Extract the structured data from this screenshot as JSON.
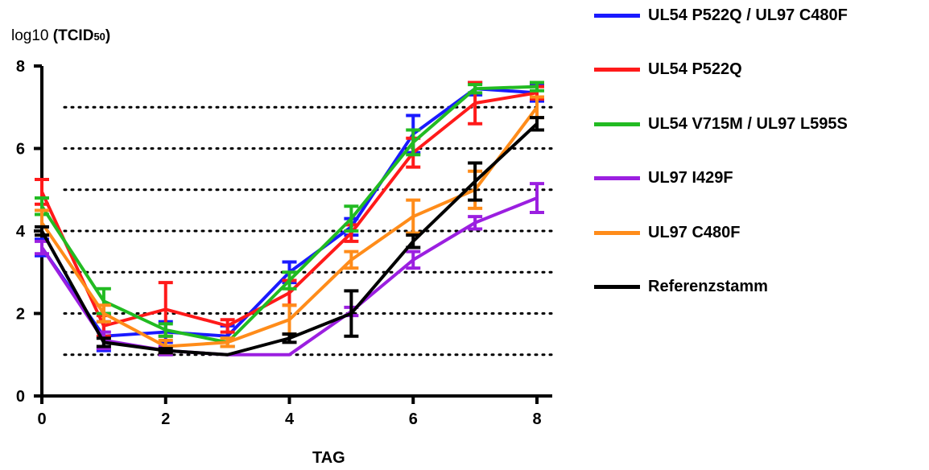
{
  "chart_data": {
    "type": "line",
    "title": "",
    "xlabel": "TAG",
    "ylabel": {
      "prefix": "log10",
      "main": "TCID",
      "sub": "50"
    },
    "xlim": [
      0,
      8
    ],
    "ylim": [
      0,
      8
    ],
    "x_ticks": [
      "0",
      "2",
      "4",
      "6",
      "8"
    ],
    "y_ticks": [
      "0",
      "2",
      "4",
      "6",
      "8"
    ],
    "gridlines_dotted_y": [
      1,
      2,
      3,
      4,
      5,
      6,
      7
    ],
    "legend_position": "right",
    "x": [
      0,
      1,
      2,
      3,
      4,
      5,
      6,
      7,
      8
    ],
    "series": [
      {
        "name": "UL54 P522Q / UL97 C480F",
        "color": "#1a1aff",
        "values": [
          3.6,
          1.45,
          1.55,
          1.45,
          3.0,
          4.1,
          6.35,
          7.45,
          7.35
        ],
        "errors": [
          0.2,
          0.35,
          0.25,
          0.25,
          0.25,
          0.2,
          0.45,
          0.15,
          0.2
        ]
      },
      {
        "name": "UL54 P522Q",
        "color": "#ff1a1a",
        "values": [
          4.95,
          1.7,
          2.1,
          1.7,
          2.5,
          3.95,
          5.9,
          7.1,
          7.35
        ],
        "errors": [
          0.3,
          0.25,
          0.65,
          0.15,
          0.3,
          0.2,
          0.35,
          0.5,
          0.15
        ]
      },
      {
        "name": "UL54 V715M / UL97 L595S",
        "color": "#22bb22",
        "values": [
          4.6,
          2.3,
          1.6,
          1.3,
          2.8,
          4.3,
          6.15,
          7.45,
          7.5
        ],
        "errors": [
          0.2,
          0.3,
          0.15,
          0.1,
          0.2,
          0.3,
          0.3,
          0.1,
          0.1
        ]
      },
      {
        "name": "UL97 I429F",
        "color": "#9b1fe0",
        "values": [
          3.6,
          1.35,
          1.1,
          1.0,
          1.0,
          2.05,
          3.3,
          4.2,
          4.8
        ],
        "errors": [
          0.15,
          0.2,
          0.1,
          0.0,
          0.0,
          0.1,
          0.2,
          0.15,
          0.35
        ]
      },
      {
        "name": "UL97 C480F",
        "color": "#ff8c1a",
        "values": [
          4.2,
          2.0,
          1.2,
          1.3,
          1.85,
          3.3,
          4.35,
          5.0,
          7.0
        ],
        "errors": [
          0.3,
          0.2,
          0.15,
          0.1,
          0.35,
          0.2,
          0.4,
          0.45,
          0.25
        ]
      },
      {
        "name": "Referenzstamm",
        "color": "#000000",
        "values": [
          4.0,
          1.3,
          1.1,
          1.0,
          1.4,
          2.0,
          3.75,
          5.2,
          6.6
        ],
        "errors": [
          0.1,
          0.1,
          0.05,
          0.0,
          0.1,
          0.55,
          0.15,
          0.45,
          0.15
        ]
      }
    ]
  }
}
